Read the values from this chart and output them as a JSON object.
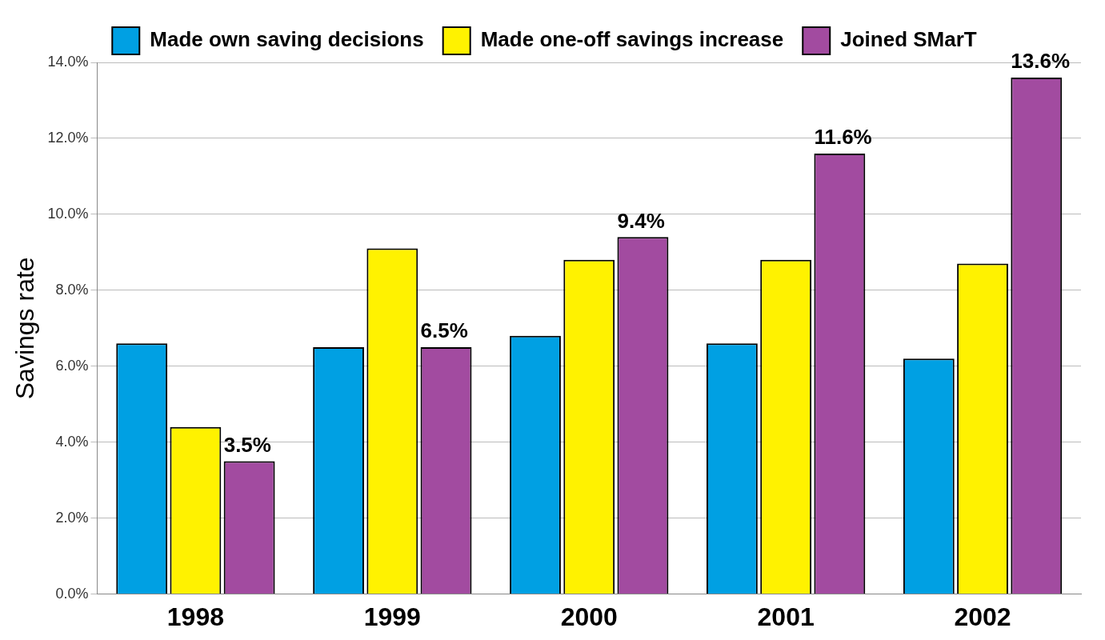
{
  "chart_data": {
    "type": "bar",
    "ylabel": "Savings rate",
    "categories": [
      "1998",
      "1999",
      "2000",
      "2001",
      "2002"
    ],
    "series": [
      {
        "name": "Made own saving decisions",
        "color": "#00a0e3",
        "values": [
          6.6,
          6.5,
          6.8,
          6.6,
          6.2
        ]
      },
      {
        "name": "Made one-off savings increase",
        "color": "#fff200",
        "values": [
          4.4,
          9.1,
          8.8,
          8.8,
          8.7
        ]
      },
      {
        "name": "Joined SMarT",
        "color": "#a24ba0",
        "values": [
          3.5,
          6.5,
          9.4,
          11.6,
          13.6
        ],
        "value_labels": [
          "3.5%",
          "6.5%",
          "9.4%",
          "11.6%",
          "13.6%"
        ]
      }
    ],
    "ylim": [
      0,
      14
    ],
    "yticks": [
      {
        "value": 0,
        "label": "0.0%"
      },
      {
        "value": 2,
        "label": "2.0%"
      },
      {
        "value": 4,
        "label": "4.0%"
      },
      {
        "value": 6,
        "label": "6.0%"
      },
      {
        "value": 8,
        "label": "8.0%"
      },
      {
        "value": 10,
        "label": "10.0%"
      },
      {
        "value": 12,
        "label": "12.0%"
      },
      {
        "value": 14,
        "label": "14.0%"
      }
    ],
    "grid": "y",
    "legend": "top"
  }
}
